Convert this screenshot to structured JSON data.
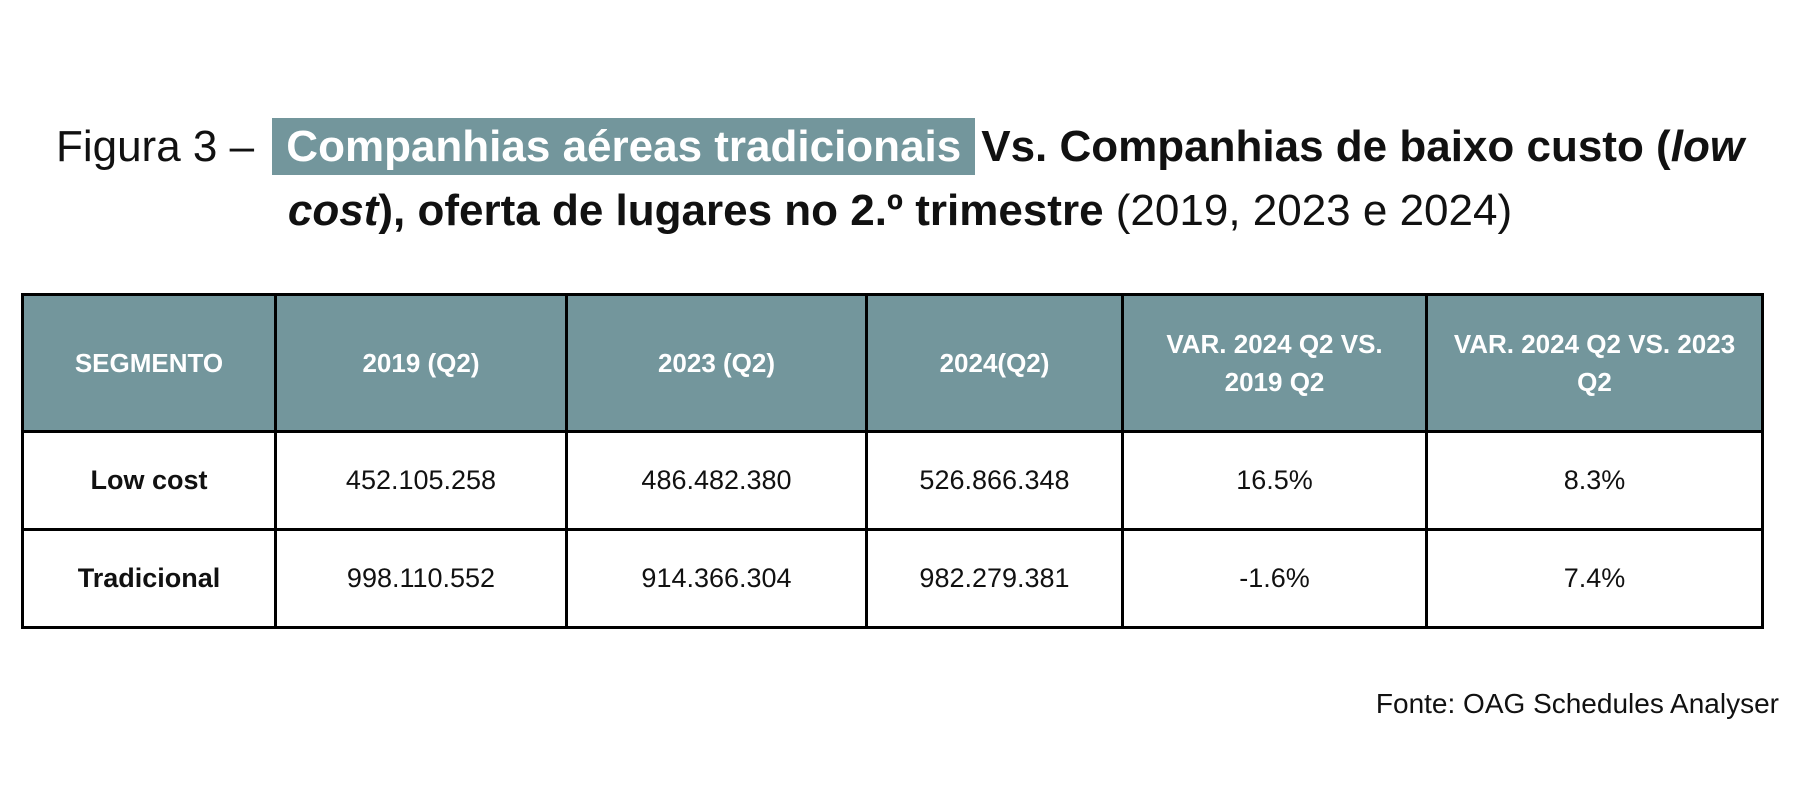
{
  "title": {
    "parts": [
      "Figura 3 –",
      "Companhias aéreas tradicionais",
      "Vs. Companhias de baixo custo (",
      "low cost",
      "), oferta de lugares no 2.º trimestre",
      "(2019, 2023 e 2024)"
    ]
  },
  "table": {
    "header": [
      "SEGMENTO",
      "2019 (Q2)",
      "2023 (Q2)",
      "2024(Q2)",
      "VAR. 2024 Q2 VS. 2019 Q2",
      "VAR. 2024 Q2 VS. 2023 Q2"
    ],
    "rows": [
      [
        "Low cost",
        "452.105.258",
        "486.482.380",
        "526.866.348",
        "16.5%",
        "8.3%"
      ],
      [
        "Tradicional",
        "998.110.552",
        "914.366.304",
        "982.279.381",
        "-1.6%",
        "7.4%"
      ]
    ]
  },
  "source": "Fonte: OAG Schedules Analyser"
}
